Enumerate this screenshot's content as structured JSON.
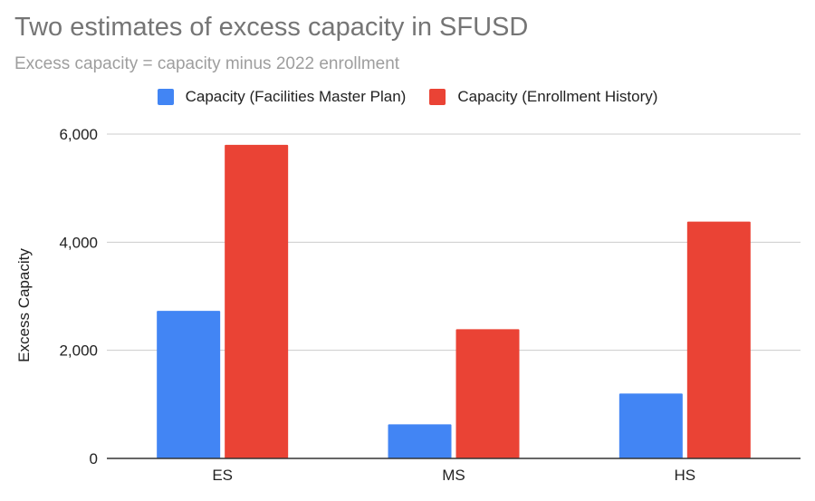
{
  "chart_data": {
    "type": "bar",
    "title": "Two estimates of excess capacity in SFUSD",
    "subtitle": "Excess capacity = capacity minus 2022 enrollment",
    "xlabel": "",
    "ylabel": "Excess Capacity",
    "categories": [
      "ES",
      "MS",
      "HS"
    ],
    "series": [
      {
        "name": "Capacity (Facilities Master Plan)",
        "color": "#4285f4",
        "values": [
          2730,
          630,
          1200
        ]
      },
      {
        "name": "Capacity (Enrollment History)",
        "color": "#ea4335",
        "values": [
          5800,
          2390,
          4380
        ]
      }
    ],
    "ylim": [
      0,
      6000
    ],
    "yticks": [
      0,
      2000,
      4000,
      6000
    ],
    "ytick_labels": [
      "0",
      "2,000",
      "4,000",
      "6,000"
    ],
    "grid": true,
    "legend": "top-center"
  }
}
